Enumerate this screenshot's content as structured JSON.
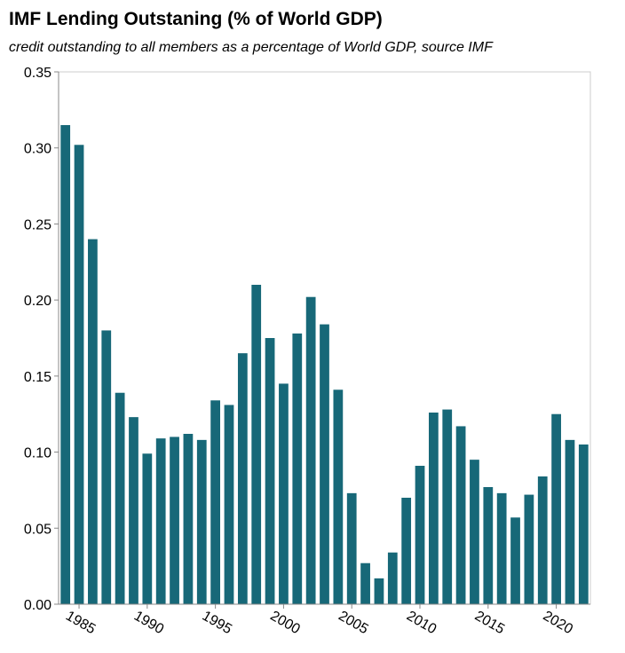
{
  "chart_data": {
    "type": "bar",
    "title": "IMF Lending Outstaning (% of World GDP)",
    "subtitle": "credit outstanding to all members as a percentage of World GDP, source IMF",
    "categories": [
      null,
      "1985",
      null,
      null,
      null,
      null,
      "1990",
      null,
      null,
      null,
      null,
      "1995",
      null,
      null,
      null,
      null,
      "2000",
      null,
      null,
      null,
      null,
      "2005",
      null,
      null,
      null,
      null,
      "2010",
      null,
      null,
      null,
      null,
      "2015",
      null,
      null,
      null,
      null,
      "2020",
      null,
      null
    ],
    "values": [
      0.315,
      0.302,
      0.24,
      0.18,
      0.139,
      0.123,
      0.099,
      0.109,
      0.11,
      0.112,
      0.108,
      0.134,
      0.131,
      0.165,
      0.21,
      0.175,
      0.145,
      0.178,
      0.202,
      0.184,
      0.141,
      0.073,
      0.027,
      0.017,
      0.034,
      0.07,
      0.091,
      0.126,
      0.128,
      0.117,
      0.095,
      0.077,
      0.073,
      0.057,
      0.072,
      0.084,
      0.125,
      0.108,
      0.105
    ],
    "color": "#176878",
    "ylim": [
      0,
      0.35
    ],
    "yticks": [
      {
        "value": 0,
        "label": "0.00"
      },
      {
        "value": 0.05,
        "label": "0.05"
      },
      {
        "value": 0.1,
        "label": "0.10"
      },
      {
        "value": 0.15,
        "label": "0.15"
      },
      {
        "value": 0.2,
        "label": "0.20"
      },
      {
        "value": 0.25,
        "label": "0.25"
      },
      {
        "value": 0.3,
        "label": "0.30"
      },
      {
        "value": 0.35,
        "label": "0.35"
      }
    ],
    "grid": false
  }
}
